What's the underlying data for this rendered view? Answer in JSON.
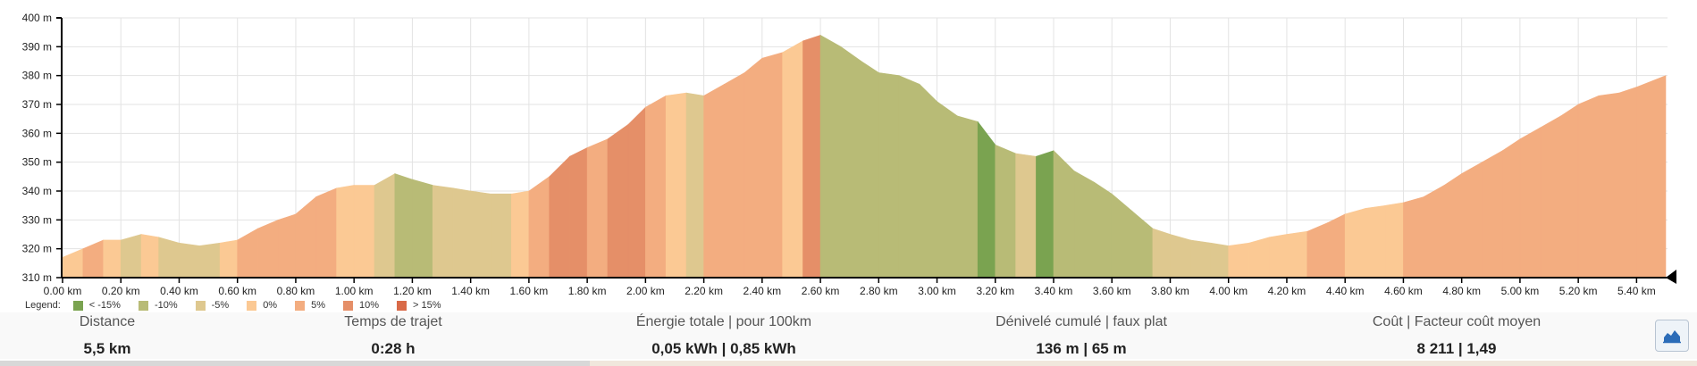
{
  "chart_data": {
    "type": "area",
    "title": "",
    "xlabel": "",
    "ylabel": "",
    "xlim": [
      0,
      5.5
    ],
    "ylim": [
      310,
      400
    ],
    "x_ticks": [
      "0.00 km",
      "0.20 km",
      "0.40 km",
      "0.60 km",
      "0.80 km",
      "1.00 km",
      "1.20 km",
      "1.40 km",
      "1.60 km",
      "1.80 km",
      "2.00 km",
      "2.20 km",
      "2.40 km",
      "2.60 km",
      "2.80 km",
      "3.00 km",
      "3.20 km",
      "3.40 km",
      "3.60 km",
      "3.80 km",
      "4.00 km",
      "4.20 km",
      "4.40 km",
      "4.60 km",
      "4.80 km",
      "5.00 km",
      "5.20 km",
      "5.40 km"
    ],
    "y_ticks": [
      "310 m",
      "320 m",
      "330 m",
      "340 m",
      "350 m",
      "360 m",
      "370 m",
      "380 m",
      "390 m",
      "400 m"
    ],
    "grid": true,
    "series": [
      {
        "x": [
          0.0,
          0.07,
          0.14,
          0.2,
          0.27,
          0.33,
          0.4,
          0.47,
          0.54,
          0.6,
          0.67,
          0.74,
          0.8,
          0.87,
          0.94,
          1.0,
          1.07,
          1.14,
          1.2,
          1.27,
          1.34,
          1.4,
          1.47,
          1.54,
          1.6,
          1.67,
          1.74,
          1.8,
          1.87,
          1.94,
          2.0,
          2.07,
          2.14,
          2.2,
          2.27,
          2.34,
          2.4,
          2.47,
          2.54,
          2.6,
          2.67,
          2.74,
          2.8,
          2.87,
          2.94,
          3.0,
          3.07,
          3.14,
          3.2,
          3.27,
          3.34,
          3.4,
          3.47,
          3.54,
          3.6,
          3.67,
          3.74,
          3.8,
          3.87,
          3.94,
          4.0,
          4.07,
          4.14,
          4.2,
          4.27,
          4.34,
          4.4,
          4.47,
          4.54,
          4.6,
          4.67,
          4.74,
          4.8,
          4.87,
          4.94,
          5.0,
          5.07,
          5.14,
          5.2,
          5.27,
          5.34,
          5.4,
          5.5
        ],
        "y": [
          317,
          320,
          323,
          323,
          325,
          324,
          322,
          321,
          322,
          323,
          327,
          330,
          332,
          338,
          341,
          342,
          342,
          346,
          344,
          342,
          341,
          340,
          339,
          339,
          340,
          345,
          352,
          355,
          358,
          363,
          369,
          373,
          374,
          373,
          377,
          381,
          386,
          388,
          392,
          394,
          390,
          385,
          381,
          380,
          377,
          371,
          366,
          364,
          356,
          353,
          352,
          354,
          347,
          343,
          339,
          333,
          327,
          325,
          323,
          322,
          321,
          322,
          324,
          325,
          326,
          329,
          332,
          334,
          335,
          336,
          338,
          342,
          346,
          350,
          354,
          358,
          362,
          366,
          370,
          373,
          374,
          376,
          380
        ],
        "grades": [
          3,
          4,
          3,
          2,
          3,
          2,
          2,
          2,
          3,
          4,
          4,
          4,
          4,
          4,
          3,
          3,
          2,
          1,
          1,
          2,
          2,
          2,
          2,
          3,
          4,
          5,
          5,
          4,
          5,
          5,
          4,
          3,
          2,
          4,
          4,
          4,
          4,
          3,
          5,
          1,
          1,
          1,
          1,
          1,
          1,
          1,
          1,
          0,
          1,
          2,
          0,
          1,
          1,
          1,
          1,
          1,
          2,
          2,
          2,
          2,
          3,
          3,
          3,
          3,
          4,
          4,
          3,
          3,
          3,
          4,
          4,
          4,
          4,
          4,
          4,
          4,
          4,
          4,
          4,
          4,
          4,
          4
        ]
      }
    ]
  },
  "legend": {
    "title": "Legend:",
    "items": [
      {
        "label": "< -15%",
        "color": "#7aa350"
      },
      {
        "label": "-10%",
        "color": "#b8bb76"
      },
      {
        "label": "-5%",
        "color": "#dec88f"
      },
      {
        "label": "0%",
        "color": "#fbc994"
      },
      {
        "label": "5%",
        "color": "#f3ad80"
      },
      {
        "label": "10%",
        "color": "#e58f68"
      },
      {
        "label": "> 15%",
        "color": "#d96a48"
      }
    ]
  },
  "stats": [
    {
      "label": "Distance",
      "value": "5,5 km"
    },
    {
      "label": "Temps de trajet",
      "value": "0:28 h"
    },
    {
      "label": "Énergie totale | pour 100km",
      "value": "0,05 kWh | 0,85 kWh"
    },
    {
      "label": "Dénivelé cumulé | faux plat",
      "value": "136 m | 65 m"
    },
    {
      "label": "Coût | Facteur coût moyen",
      "value": "8 211 | 1,49"
    }
  ],
  "profile_toggle": {
    "icon": "area-chart-icon",
    "color": "#2b6cb8"
  }
}
